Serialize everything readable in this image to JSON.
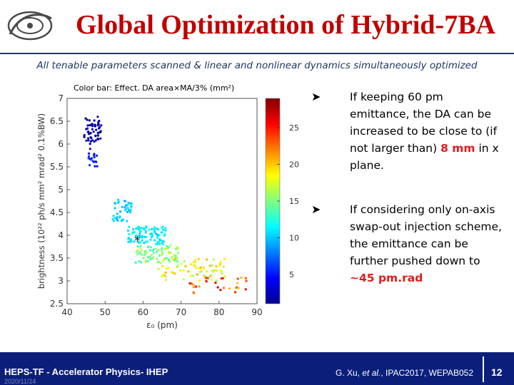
{
  "header": {
    "title": "Global Optimization of Hybrid-7BA",
    "subtitle": "All tenable parameters scanned & linear and nonlinear dynamics simultaneously optimized"
  },
  "bullets": [
    {
      "pre": "If keeping 60 pm emittance, the DA can be increased to be close to (if not larger than) ",
      "highlight": "8 mm",
      "post": " in x plane."
    },
    {
      "pre": "If considering only on-axis swap-out injection scheme, the emittance can be further pushed down to ",
      "highlight": "~45 pm.rad",
      "post": ""
    }
  ],
  "footer": {
    "left": "HEPS-TF - Accelerator Physics- IHEP",
    "date": "2020/11/24",
    "page": "12"
  },
  "colors": {
    "title": "#c00000",
    "footer_bg": "#0b1f7a",
    "highlight": "#e31b1b"
  },
  "chart_data": {
    "type": "scatter",
    "title": "",
    "colorbar_label": "Color bar: Effect. DA area×MA/3% (mm²)",
    "colormap": "jet",
    "colorbar_ticks": [
      5,
      10,
      15,
      20,
      25
    ],
    "colorbar_range": [
      1,
      29
    ],
    "xlabel": "ε₀ (pm)",
    "ylabel": "brightness (10²² ph/s mm² mrad² 0.1%BW)",
    "xlim": [
      40,
      90
    ],
    "ylim": [
      2.5,
      7
    ],
    "xticks": [
      40,
      50,
      60,
      70,
      80,
      90
    ],
    "yticks": [
      2.5,
      3,
      3.5,
      4,
      4.5,
      5,
      5.5,
      6,
      6.5,
      7
    ],
    "marker": {
      "x": 58.5,
      "y": 3.9,
      "symbol": "*"
    },
    "clusters": [
      {
        "x": [
          44.5,
          49
        ],
        "y": [
          6.0,
          6.6
        ],
        "c": [
          1,
          3
        ],
        "n": 55
      },
      {
        "x": [
          45,
          48
        ],
        "y": [
          5.5,
          5.9
        ],
        "c": [
          4,
          6
        ],
        "n": 18
      },
      {
        "x": [
          52,
          57
        ],
        "y": [
          4.3,
          4.8
        ],
        "c": [
          9,
          11
        ],
        "n": 45
      },
      {
        "x": [
          56,
          66
        ],
        "y": [
          3.8,
          4.2
        ],
        "c": [
          10,
          12
        ],
        "n": 90
      },
      {
        "x": [
          58,
          70
        ],
        "y": [
          3.4,
          3.8
        ],
        "c": [
          13,
          17
        ],
        "n": 80
      },
      {
        "x": [
          64,
          82
        ],
        "y": [
          3.0,
          3.5
        ],
        "c": [
          16,
          21
        ],
        "n": 70
      },
      {
        "x": [
          72,
          88
        ],
        "y": [
          2.7,
          3.1
        ],
        "c": [
          20,
          27
        ],
        "n": 30
      }
    ]
  }
}
